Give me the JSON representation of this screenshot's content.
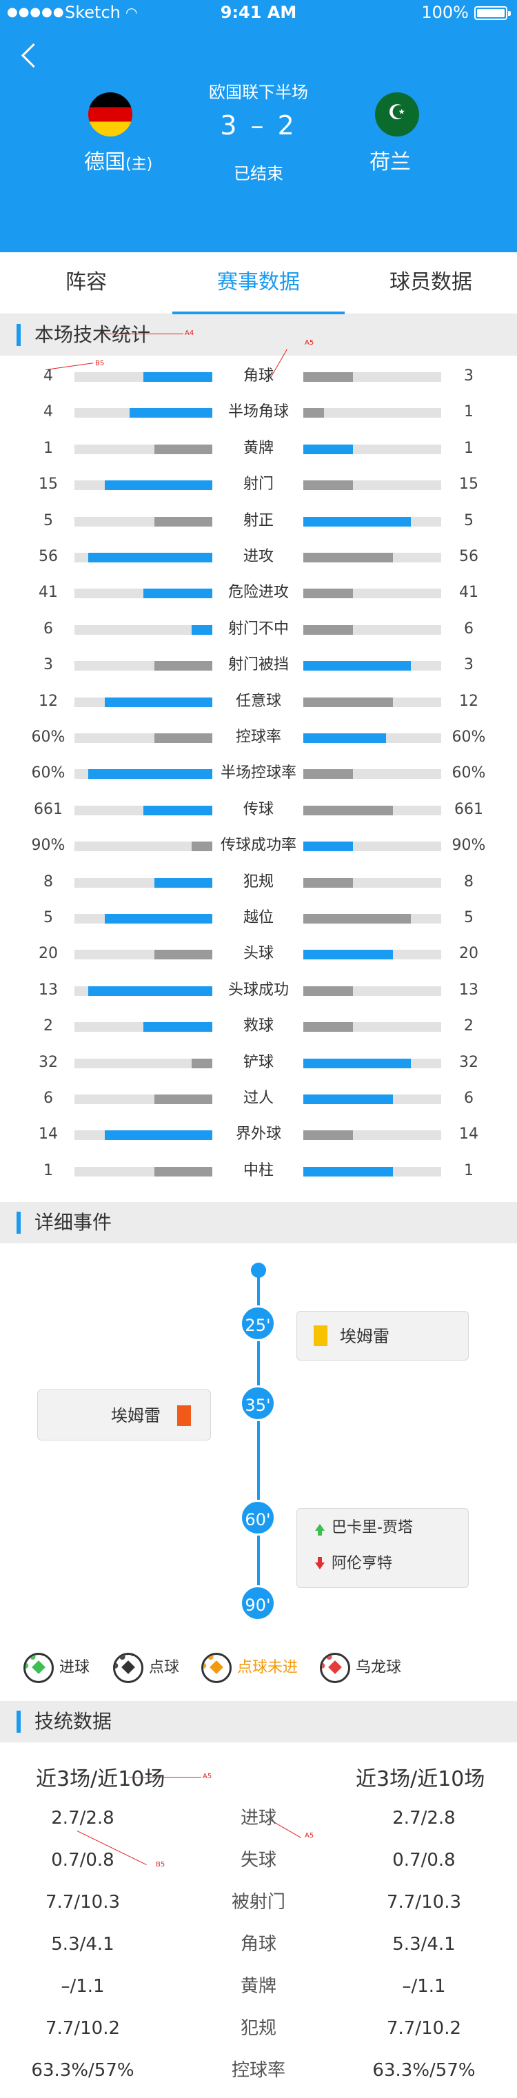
{
  "status_bar": {
    "carrier": "Sketch",
    "time": "9:41 AM",
    "battery": "100%",
    "signal_icon": "signal-dots-icon",
    "wifi_icon": "wifi-icon"
  },
  "match": {
    "round": "欧国联下半场",
    "score": "3 – 2",
    "status": "已结束",
    "home": {
      "name": "德国",
      "tag": "(主)",
      "flag_icon": "germany-flag-icon"
    },
    "away": {
      "name": "荷兰",
      "flag_icon": "pakistan-flag-icon",
      "flag_glyph": "☪"
    }
  },
  "tabs": [
    {
      "label": "阵容"
    },
    {
      "label": "赛事数据",
      "active": true
    },
    {
      "label": "球员数据"
    }
  ],
  "colors": {
    "primary": "#1a9af0",
    "bar_blue": "#1a9af0",
    "bar_gray": "#9a9a9a",
    "track": "#e2e2e2",
    "annotation": "#e02020"
  },
  "annotations": [
    "A4",
    "B5",
    "A5",
    "A5",
    "A5",
    "B5"
  ],
  "stats_section": {
    "title": "本场技术统计"
  },
  "stats": [
    {
      "name": "角球",
      "home": "4",
      "away": "3",
      "home_fill": 0.5,
      "home_color": "blue",
      "away_fill": 0.36,
      "away_color": "gray"
    },
    {
      "name": "半场角球",
      "home": "4",
      "away": "1",
      "home_fill": 0.6,
      "home_color": "blue",
      "away_fill": 0.15,
      "away_color": "gray"
    },
    {
      "name": "黄牌",
      "home": "1",
      "away": "1",
      "home_fill": 0.42,
      "home_color": "gray",
      "away_fill": 0.36,
      "away_color": "blue"
    },
    {
      "name": "射门",
      "home": "15",
      "away": "15",
      "home_fill": 0.78,
      "home_color": "blue",
      "away_fill": 0.36,
      "away_color": "gray"
    },
    {
      "name": "射正",
      "home": "5",
      "away": "5",
      "home_fill": 0.42,
      "home_color": "gray",
      "away_fill": 0.78,
      "away_color": "blue"
    },
    {
      "name": "进攻",
      "home": "56",
      "away": "56",
      "home_fill": 0.9,
      "home_color": "blue",
      "away_fill": 0.65,
      "away_color": "gray"
    },
    {
      "name": "危险进攻",
      "home": "41",
      "away": "41",
      "home_fill": 0.5,
      "home_color": "blue",
      "away_fill": 0.36,
      "away_color": "gray"
    },
    {
      "name": "射门不中",
      "home": "6",
      "away": "6",
      "home_fill": 0.15,
      "home_color": "blue",
      "away_fill": 0.36,
      "away_color": "gray"
    },
    {
      "name": "射门被挡",
      "home": "3",
      "away": "3",
      "home_fill": 0.42,
      "home_color": "gray",
      "away_fill": 0.78,
      "away_color": "blue"
    },
    {
      "name": "任意球",
      "home": "12",
      "away": "12",
      "home_fill": 0.78,
      "home_color": "blue",
      "away_fill": 0.65,
      "away_color": "gray"
    },
    {
      "name": "控球率",
      "home": "60%",
      "away": "60%",
      "home_fill": 0.42,
      "home_color": "gray",
      "away_fill": 0.6,
      "away_color": "blue"
    },
    {
      "name": "半场控球率",
      "home": "60%",
      "away": "60%",
      "home_fill": 0.9,
      "home_color": "blue",
      "away_fill": 0.36,
      "away_color": "gray"
    },
    {
      "name": "传球",
      "home": "661",
      "away": "661",
      "home_fill": 0.5,
      "home_color": "blue",
      "away_fill": 0.65,
      "away_color": "gray"
    },
    {
      "name": "传球成功率",
      "home": "90%",
      "away": "90%",
      "home_fill": 0.15,
      "home_color": "gray",
      "away_fill": 0.36,
      "away_color": "blue"
    },
    {
      "name": "犯规",
      "home": "8",
      "away": "8",
      "home_fill": 0.42,
      "home_color": "blue",
      "away_fill": 0.36,
      "away_color": "gray"
    },
    {
      "name": "越位",
      "home": "5",
      "away": "5",
      "home_fill": 0.78,
      "home_color": "blue",
      "away_fill": 0.78,
      "away_color": "gray"
    },
    {
      "name": "头球",
      "home": "20",
      "away": "20",
      "home_fill": 0.42,
      "home_color": "gray",
      "away_fill": 0.65,
      "away_color": "blue"
    },
    {
      "name": "头球成功",
      "home": "13",
      "away": "13",
      "home_fill": 0.9,
      "home_color": "blue",
      "away_fill": 0.36,
      "away_color": "gray"
    },
    {
      "name": "救球",
      "home": "2",
      "away": "2",
      "home_fill": 0.5,
      "home_color": "blue",
      "away_fill": 0.36,
      "away_color": "gray"
    },
    {
      "name": "铲球",
      "home": "32",
      "away": "32",
      "home_fill": 0.15,
      "home_color": "gray",
      "away_fill": 0.78,
      "away_color": "blue"
    },
    {
      "name": "过人",
      "home": "6",
      "away": "6",
      "home_fill": 0.42,
      "home_color": "gray",
      "away_fill": 0.65,
      "away_color": "blue"
    },
    {
      "name": "界外球",
      "home": "14",
      "away": "14",
      "home_fill": 0.78,
      "home_color": "blue",
      "away_fill": 0.36,
      "away_color": "gray"
    },
    {
      "name": "中柱",
      "home": "1",
      "away": "1",
      "home_fill": 0.42,
      "home_color": "gray",
      "away_fill": 0.65,
      "away_color": "blue"
    }
  ],
  "events_section": {
    "title": "详细事件"
  },
  "events": {
    "minutes": [
      "25'",
      "35'",
      "60'",
      "90'"
    ],
    "e25": {
      "player": "埃姆雷",
      "card": "yellow-card-icon"
    },
    "e35": {
      "player": "埃姆雷",
      "card": "red-card-icon"
    },
    "e60": {
      "sub_in": "巴卡里-贾塔",
      "sub_out": "阿伦亨特",
      "in_icon": "sub-in-arrow-icon",
      "out_icon": "sub-out-arrow-icon"
    }
  },
  "legend": [
    {
      "label": "进球",
      "icon": "goal-ball-icon",
      "color": "#3cbf4e"
    },
    {
      "label": "点球",
      "icon": "penalty-ball-icon",
      "color": "#333333"
    },
    {
      "label": "点球未进",
      "icon": "missed-penalty-ball-icon",
      "color": "#f59a0c"
    },
    {
      "label": "乌龙球",
      "icon": "own-goal-ball-icon",
      "color": "#e83a3a"
    }
  ],
  "tech_section": {
    "title": "技统数据"
  },
  "tech": {
    "head_left": "近3场/近10场",
    "head_right": "近3场/近10场",
    "rows": [
      {
        "left": "2.7/2.8",
        "name": "进球",
        "right": "2.7/2.8"
      },
      {
        "left": "0.7/0.8",
        "name": "失球",
        "right": "0.7/0.8"
      },
      {
        "left": "7.7/10.3",
        "name": "被射门",
        "right": "7.7/10.3"
      },
      {
        "left": "5.3/4.1",
        "name": "角球",
        "right": "5.3/4.1"
      },
      {
        "left": "–/1.1",
        "name": "黄牌",
        "right": "–/1.1"
      },
      {
        "left": "7.7/10.2",
        "name": "犯规",
        "right": "7.7/10.2"
      },
      {
        "left": "63.3%/57%",
        "name": "控球率",
        "right": "63.3%/57%"
      }
    ]
  }
}
